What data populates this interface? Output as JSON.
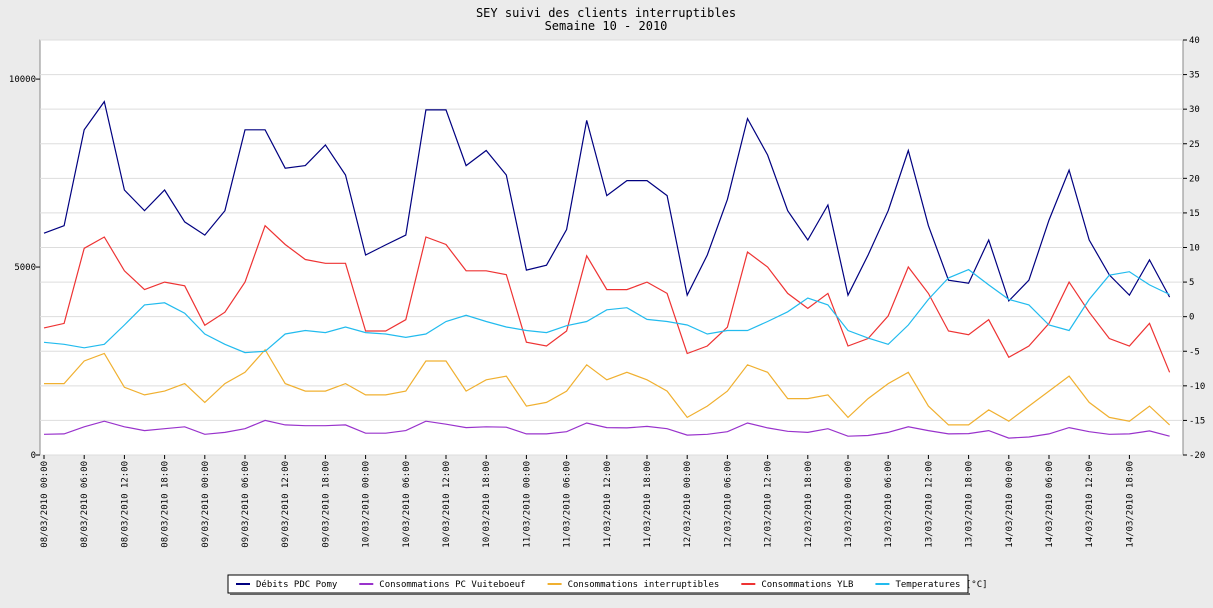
{
  "chart_data": {
    "type": "line",
    "title": "SEY suivi des clients interruptibles",
    "subtitle": "Semaine 10 - 2010",
    "categories": [
      "08/03/2010 00:00",
      null,
      "08/03/2010 06:00",
      null,
      "08/03/2010 12:00",
      null,
      "08/03/2010 18:00",
      null,
      "09/03/2010 00:00",
      null,
      "09/03/2010 06:00",
      null,
      "09/03/2010 12:00",
      null,
      "09/03/2010 18:00",
      null,
      "10/03/2010 00:00",
      null,
      "10/03/2010 06:00",
      null,
      "10/03/2010 12:00",
      null,
      "10/03/2010 18:00",
      null,
      "11/03/2010 00:00",
      null,
      "11/03/2010 06:00",
      null,
      "11/03/2010 12:00",
      null,
      "11/03/2010 18:00",
      null,
      "12/03/2010 00:00",
      null,
      "12/03/2010 06:00",
      null,
      "12/03/2010 12:00",
      null,
      "12/03/2010 18:00",
      null,
      "13/03/2010 00:00",
      null,
      "13/03/2010 06:00",
      null,
      "13/03/2010 12:00",
      null,
      "13/03/2010 18:00",
      null,
      "14/03/2010 00:00",
      null,
      "14/03/2010 06:00",
      null,
      "14/03/2010 12:00",
      null,
      "14/03/2010 18:00",
      null,
      null
    ],
    "series": [
      {
        "name": "Débits PDC Pomy",
        "color": "#000080",
        "values": [
          5900,
          6100,
          8650,
          9400,
          7050,
          6500,
          7050,
          6200,
          5850,
          6500,
          8650,
          8650,
          7630,
          7700,
          8250,
          7450,
          5320,
          5590,
          5850,
          9180,
          9180,
          7700,
          8100,
          7450,
          4920,
          5050,
          6000,
          8900,
          6900,
          7300,
          7300,
          6900,
          4250,
          5320,
          6800,
          8950,
          7980,
          6500,
          5720,
          6650,
          4250,
          5320,
          6500,
          8100,
          6100,
          4650,
          4570,
          5720,
          4100,
          4650,
          6250,
          7580,
          5720,
          4790,
          4250,
          5190,
          4200
        ]
      },
      {
        "name": "Consommations PC Vuiteboeuf",
        "color": "#9933cc",
        "values": [
          550,
          560,
          750,
          900,
          750,
          650,
          700,
          750,
          550,
          600,
          700,
          920,
          800,
          780,
          780,
          800,
          580,
          580,
          650,
          900,
          820,
          730,
          750,
          740,
          560,
          560,
          620,
          850,
          730,
          720,
          760,
          700,
          530,
          550,
          620,
          850,
          720,
          630,
          600,
          700,
          500,
          520,
          600,
          750,
          650,
          560,
          570,
          650,
          450,
          480,
          560,
          730,
          620,
          550,
          560,
          640,
          500
        ]
      },
      {
        "name": "Consommations interruptibles",
        "color": "#f0b030",
        "values": [
          1900,
          1900,
          2500,
          2700,
          1800,
          1600,
          1700,
          1900,
          1400,
          1900,
          2200,
          2800,
          1900,
          1700,
          1700,
          1900,
          1600,
          1600,
          1700,
          2500,
          2500,
          1700,
          2000,
          2100,
          1300,
          1400,
          1700,
          2400,
          2000,
          2200,
          2000,
          1700,
          1000,
          1300,
          1700,
          2400,
          2200,
          1500,
          1500,
          1600,
          1000,
          1500,
          1900,
          2200,
          1300,
          800,
          800,
          1200,
          900,
          1300,
          1700,
          2100,
          1400,
          1000,
          900,
          1300,
          800
        ]
      },
      {
        "name": "Consommations YLB",
        "color": "#ee3333",
        "values": [
          3380,
          3500,
          5500,
          5800,
          4900,
          4400,
          4600,
          4500,
          3450,
          3800,
          4600,
          6100,
          5600,
          5200,
          5100,
          5100,
          3300,
          3300,
          3600,
          5800,
          5600,
          4900,
          4900,
          4800,
          3000,
          2900,
          3300,
          5300,
          4400,
          4400,
          4600,
          4300,
          2700,
          2900,
          3400,
          5400,
          5000,
          4300,
          3900,
          4300,
          2900,
          3100,
          3700,
          5000,
          4300,
          3300,
          3200,
          3600,
          2600,
          2900,
          3500,
          4600,
          3800,
          3100,
          2900,
          3500,
          2200
        ]
      },
      {
        "name": "Temperatures [°C]",
        "color": "#22bbee",
        "axis": "y2",
        "values": [
          -3.7,
          -4,
          -4.5,
          -4,
          -1.2,
          1.7,
          2,
          0.5,
          -2.5,
          -4,
          -5.2,
          -5,
          -2.5,
          -2,
          -2.3,
          -1.5,
          -2.3,
          -2.5,
          -3,
          -2.5,
          -0.7,
          0.2,
          -0.7,
          -1.5,
          -2,
          -2.3,
          -1.3,
          -0.7,
          1,
          1.3,
          -0.4,
          -0.7,
          -1.2,
          -2.5,
          -2,
          -2,
          -0.7,
          0.7,
          2.7,
          1.7,
          -2,
          -3.1,
          -4,
          -1.2,
          2.5,
          5.6,
          6.8,
          4.6,
          2.5,
          1.7,
          -1.2,
          -2,
          2.5,
          6,
          6.5,
          4.6,
          3.2
        ]
      }
    ],
    "ylim": [
      0,
      11040
    ],
    "yticks": [
      0,
      5000,
      10000
    ],
    "y2lim": [
      -20,
      40
    ],
    "y2ticks": [
      -20,
      -15,
      -10,
      -5,
      0,
      5,
      10,
      15,
      20,
      25,
      30,
      35,
      40
    ],
    "grid": true,
    "legend": "bottom"
  }
}
